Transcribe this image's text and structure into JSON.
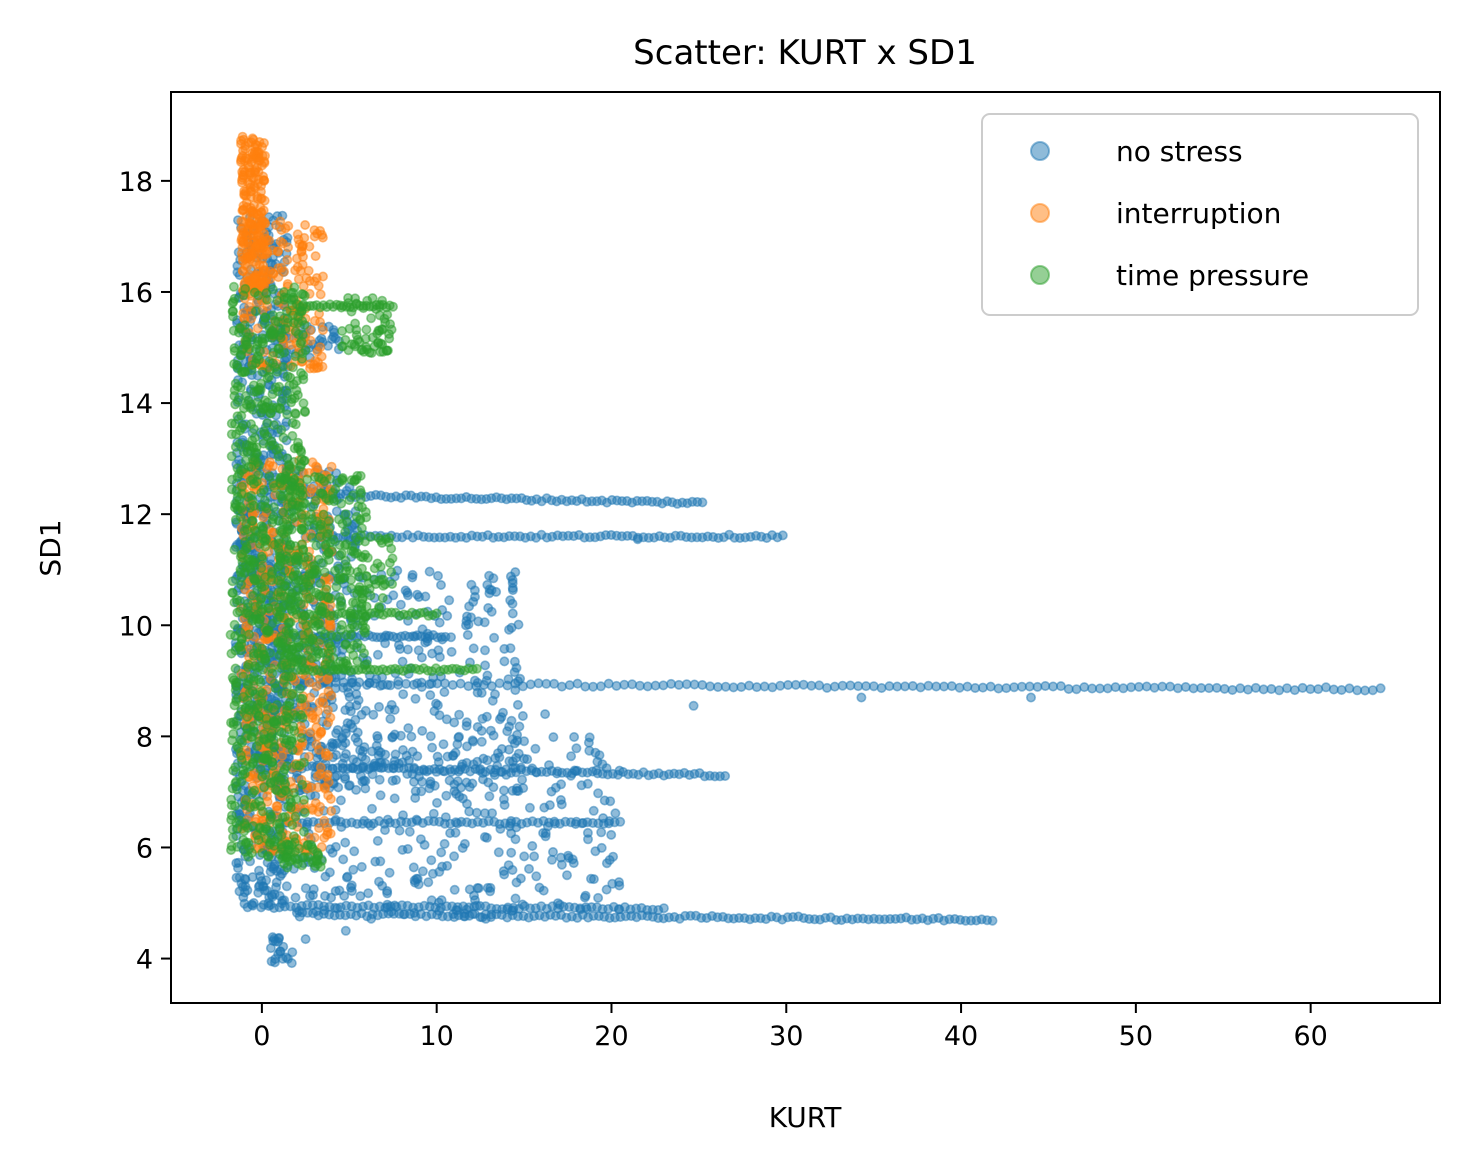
{
  "chart_data": {
    "type": "scatter",
    "title": "Scatter: KURT x SD1",
    "xlabel": "KURT",
    "ylabel": "SD1",
    "xlim": [
      -5.2,
      67.4
    ],
    "ylim": [
      3.2,
      19.6
    ],
    "xticks": [
      0,
      10,
      20,
      30,
      40,
      50,
      60
    ],
    "yticks": [
      4,
      6,
      8,
      10,
      12,
      14,
      16,
      18
    ],
    "legend_position": "top-right",
    "grid": false,
    "series": [
      {
        "name": "no stress",
        "color": "#1f77b4",
        "clusters": [
          {
            "x": [
              -1.5,
              1.5
            ],
            "y": [
              4.9,
              17.4
            ],
            "n": 700
          },
          {
            "x": [
              -1.5,
              5.5
            ],
            "y": [
              7.0,
              12.8
            ],
            "n": 400
          },
          {
            "x": [
              0.0,
              15.0
            ],
            "y": [
              7.0,
              11.0
            ],
            "n": 350
          },
          {
            "x": [
              1.0,
              20.5
            ],
            "y": [
              4.7,
              8.0
            ],
            "n": 350
          },
          {
            "x": [
              0.5,
              4.5
            ],
            "y": [
              14.8,
              15.4
            ],
            "n": 40
          },
          {
            "x": [
              0.5,
              1.8
            ],
            "y": [
              3.9,
              4.4
            ],
            "n": 20
          }
        ],
        "trails": [
          {
            "x": [
              2.5,
              25.2
            ],
            "y": [
              12.35,
              12.2
            ],
            "n": 80
          },
          {
            "x": [
              2.5,
              29.8
            ],
            "y": [
              11.6,
              11.6
            ],
            "n": 90
          },
          {
            "x": [
              2.0,
              64.0
            ],
            "y": [
              8.95,
              8.85
            ],
            "n": 140
          },
          {
            "x": [
              2.0,
              26.5
            ],
            "y": [
              7.45,
              7.3
            ],
            "n": 85
          },
          {
            "x": [
              2.0,
              20.5
            ],
            "y": [
              6.45,
              6.45
            ],
            "n": 60
          },
          {
            "x": [
              2.0,
              41.8
            ],
            "y": [
              4.8,
              4.7
            ],
            "n": 130
          },
          {
            "x": [
              1.0,
              23.0
            ],
            "y": [
              4.95,
              4.9
            ],
            "n": 70
          },
          {
            "x": [
              1.5,
              10.5
            ],
            "y": [
              9.8,
              9.8
            ],
            "n": 40
          }
        ],
        "points": [
          {
            "x": 24.7,
            "y": 8.55
          },
          {
            "x": 16.2,
            "y": 8.4
          },
          {
            "x": 11.0,
            "y": 8.25
          },
          {
            "x": 34.3,
            "y": 8.7
          },
          {
            "x": 44.0,
            "y": 8.7
          },
          {
            "x": 21.5,
            "y": 11.55
          },
          {
            "x": 4.8,
            "y": 4.5
          },
          {
            "x": 2.5,
            "y": 4.35
          }
        ]
      },
      {
        "name": "interruption",
        "color": "#ff7f0e",
        "clusters": [
          {
            "x": [
              -1.2,
              0.2
            ],
            "y": [
              16.0,
              18.8
            ],
            "n": 220
          },
          {
            "x": [
              -1.2,
              3.5
            ],
            "y": [
              14.6,
              17.3
            ],
            "n": 180
          },
          {
            "x": [
              -1.2,
              4.0
            ],
            "y": [
              5.9,
              13.0
            ],
            "n": 500
          }
        ],
        "trails": [],
        "points": []
      },
      {
        "name": "time pressure",
        "color": "#2ca02c",
        "clusters": [
          {
            "x": [
              -1.8,
              2.5
            ],
            "y": [
              5.8,
              16.1
            ],
            "n": 800
          },
          {
            "x": [
              1.0,
              6.0
            ],
            "y": [
              9.2,
              12.7
            ],
            "n": 300
          },
          {
            "x": [
              4.5,
              7.5
            ],
            "y": [
              14.9,
              15.9
            ],
            "n": 60
          },
          {
            "x": [
              5.5,
              7.5
            ],
            "y": [
              10.3,
              11.6
            ],
            "n": 40
          },
          {
            "x": [
              1.0,
              3.5
            ],
            "y": [
              5.6,
              6.1
            ],
            "n": 40
          }
        ],
        "trails": [
          {
            "x": [
              2.0,
              12.3
            ],
            "y": [
              9.2,
              9.2
            ],
            "n": 45
          },
          {
            "x": [
              2.0,
              10.0
            ],
            "y": [
              10.2,
              10.2
            ],
            "n": 35
          },
          {
            "x": [
              2.0,
              7.5
            ],
            "y": [
              15.75,
              15.75
            ],
            "n": 30
          }
        ],
        "points": []
      }
    ]
  }
}
